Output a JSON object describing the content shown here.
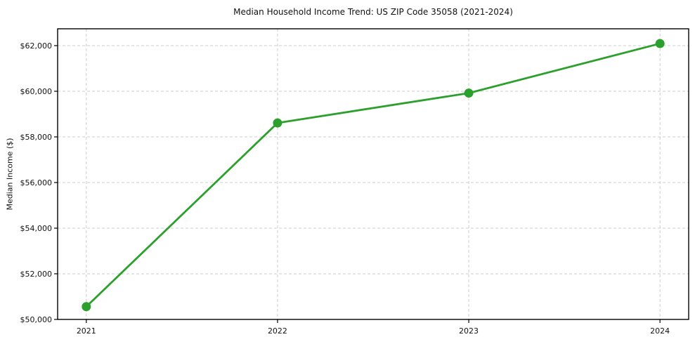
{
  "chart_data": {
    "type": "line",
    "title": "Median Household Income Trend: US ZIP Code 35058 (2021-2024)",
    "xlabel": "",
    "ylabel": "Median Income ($)",
    "x": [
      2021,
      2022,
      2023,
      2024
    ],
    "x_tick_labels": [
      "2021",
      "2022",
      "2023",
      "2024"
    ],
    "series": [
      {
        "name": "median-household-income",
        "values": [
          50560,
          58610,
          59920,
          62090
        ],
        "color": "#2ca02c",
        "marker": "circle",
        "line_width": 2.8,
        "marker_radius": 6.5
      }
    ],
    "y_ticks": [
      50000,
      52000,
      54000,
      56000,
      58000,
      60000,
      62000
    ],
    "y_tick_labels": [
      "$50,000",
      "$52,000",
      "$54,000",
      "$56,000",
      "$58,000",
      "$60,000",
      "$62,000"
    ],
    "xlim": [
      2020.85,
      2024.15
    ],
    "ylim": [
      50000,
      62738
    ],
    "grid": true,
    "grid_style": "dashed",
    "legend": false,
    "legend_position": "none"
  },
  "colors": {
    "line": "#2ca02c",
    "grid": "#cccccc",
    "axis": "#000000",
    "text": "#111111",
    "background": "#ffffff"
  }
}
